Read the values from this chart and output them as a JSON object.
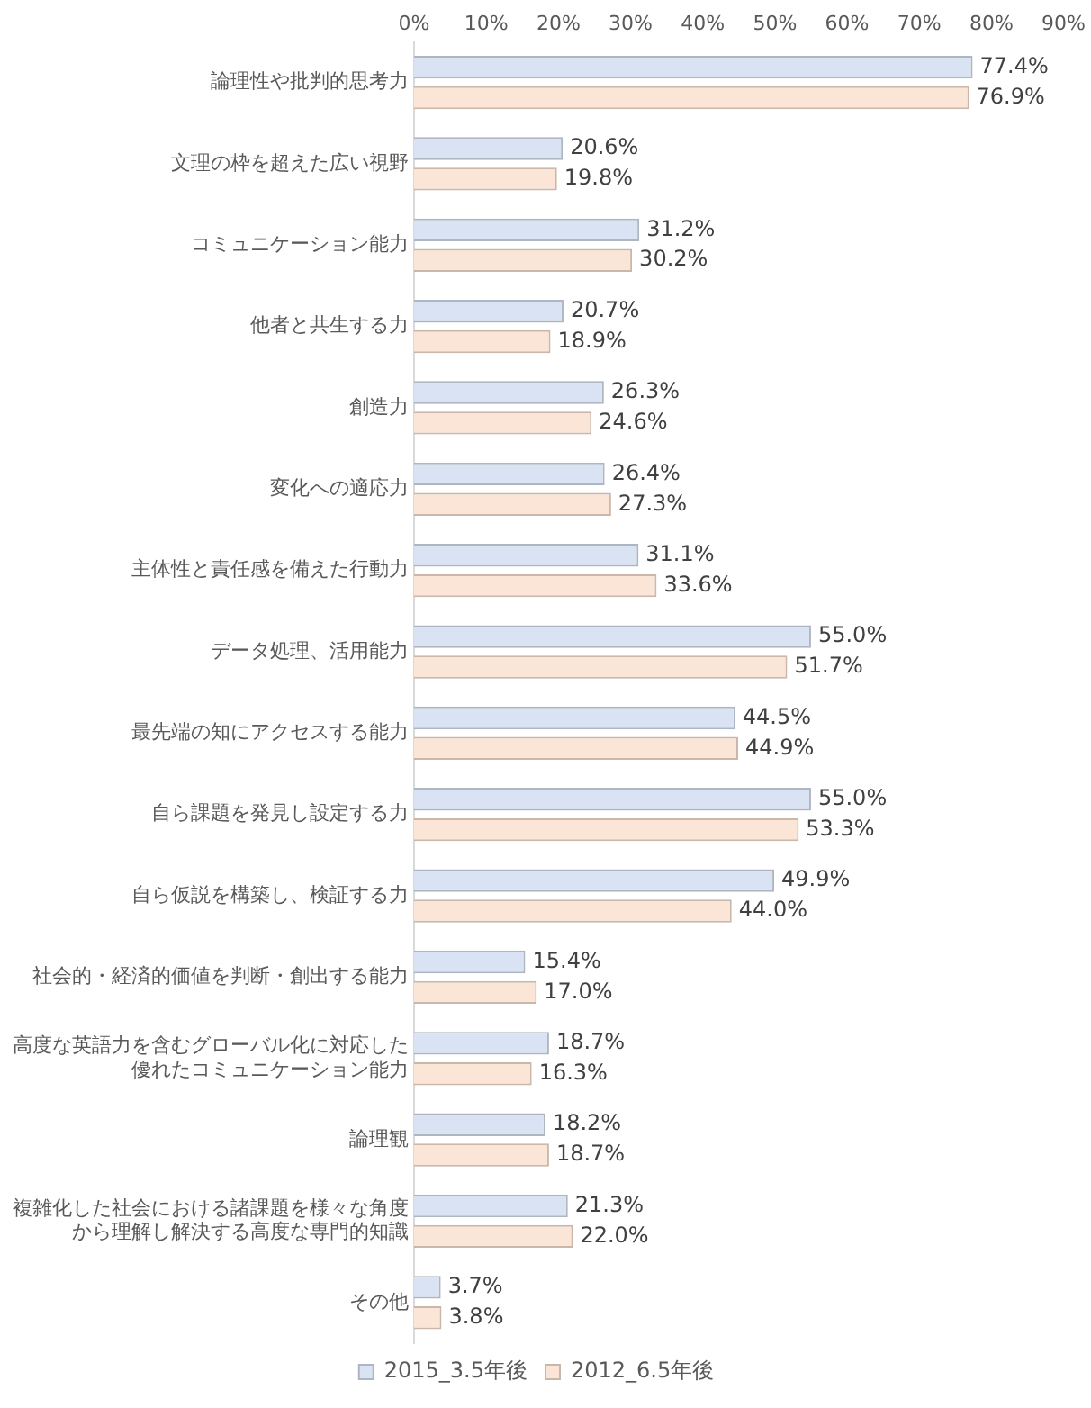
{
  "chart_data": {
    "type": "bar",
    "orientation": "horizontal",
    "categories": [
      "論理性や批判的思考力",
      "文理の枠を超えた広い視野",
      "コミュニケーション能力",
      "他者と共生する力",
      "創造力",
      "変化への適応力",
      "主体性と責任感を備えた行動力",
      "データ処理、活用能力",
      "最先端の知にアクセスする能力",
      "自ら課題を発見し設定する力",
      "自ら仮説を構築し、検証する力",
      "社会的・経済的価値を判断・創出する能力",
      "高度な英語力を含むグローバル化に対応した優れたコミュニケーション能力",
      "論理観",
      "複雑化した社会における諸課題を様々な角度から理解し解決する高度な専門的知識",
      "その他"
    ],
    "series": [
      {
        "name": "2015_3.5年後",
        "color": "#dae3f3",
        "values": [
          77.4,
          20.6,
          31.2,
          20.7,
          26.3,
          26.4,
          31.1,
          55.0,
          44.5,
          55.0,
          49.9,
          15.4,
          18.7,
          18.2,
          21.3,
          3.7
        ],
        "value_labels": [
          "77.4%",
          "20.6%",
          "31.2%",
          "20.7%",
          "26.3%",
          "26.4%",
          "31.1%",
          "55.0%",
          "44.5%",
          "55.0%",
          "49.9%",
          "15.4%",
          "18.7%",
          "18.2%",
          "21.3%",
          "3.7%"
        ]
      },
      {
        "name": "2012_6.5年後",
        "color": "#fbe5d6",
        "values": [
          76.9,
          19.8,
          30.2,
          18.9,
          24.6,
          27.3,
          33.6,
          51.7,
          44.9,
          53.3,
          44.0,
          17.0,
          16.3,
          18.7,
          22.0,
          3.8
        ],
        "value_labels": [
          "76.9%",
          "19.8%",
          "30.2%",
          "18.9%",
          "24.6%",
          "27.3%",
          "33.6%",
          "51.7%",
          "44.9%",
          "53.3%",
          "44.0%",
          "17.0%",
          "16.3%",
          "18.7%",
          "22.0%",
          "3.8%"
        ]
      }
    ],
    "xlim": [
      0,
      90
    ],
    "xticks": [
      {
        "value": 0,
        "label": "0%"
      },
      {
        "value": 10,
        "label": "10%"
      },
      {
        "value": 20,
        "label": "20%"
      },
      {
        "value": 30,
        "label": "30%"
      },
      {
        "value": 40,
        "label": "40%"
      },
      {
        "value": 50,
        "label": "50%"
      },
      {
        "value": 60,
        "label": "60%"
      },
      {
        "value": 70,
        "label": "70%"
      },
      {
        "value": 80,
        "label": "80%"
      },
      {
        "value": 90,
        "label": "90%"
      }
    ],
    "grid": false,
    "legend": "bottom"
  }
}
